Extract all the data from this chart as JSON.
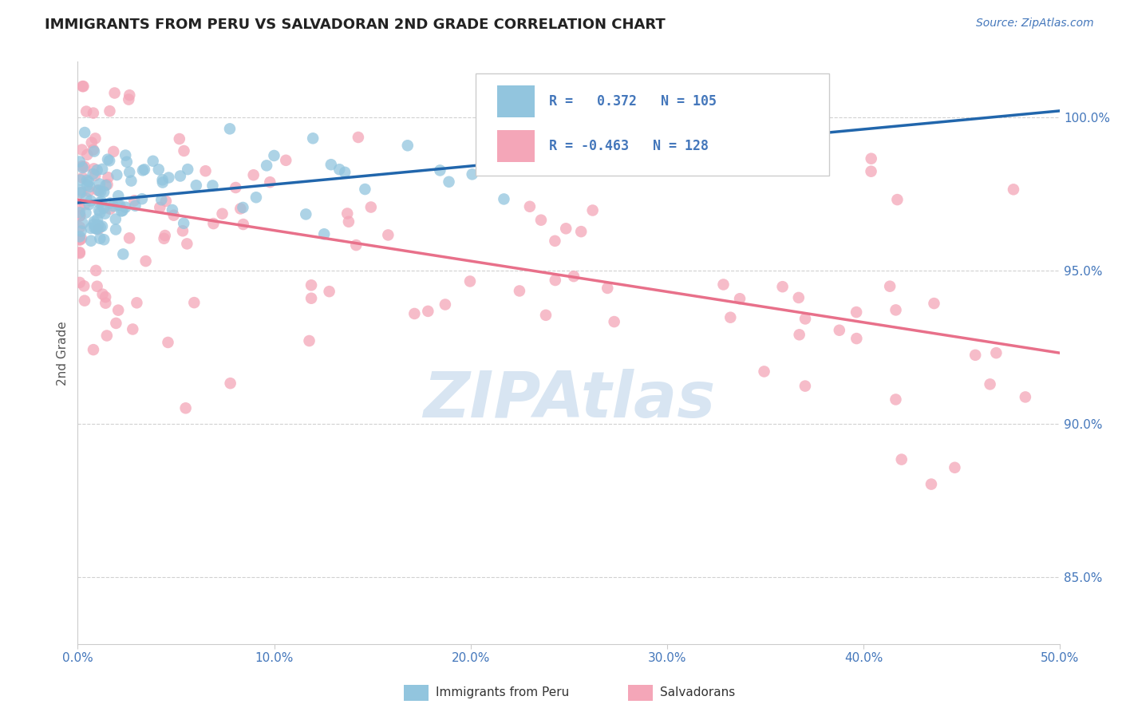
{
  "title": "IMMIGRANTS FROM PERU VS SALVADORAN 2ND GRADE CORRELATION CHART",
  "source_text": "Source: ZipAtlas.com",
  "ylabel": "2nd Grade",
  "xlim": [
    0.0,
    0.5
  ],
  "ylim": [
    0.828,
    1.018
  ],
  "xtick_vals": [
    0.0,
    0.1,
    0.2,
    0.3,
    0.4,
    0.5
  ],
  "xtick_labels": [
    "0.0%",
    "10.0%",
    "20.0%",
    "30.0%",
    "40.0%",
    "50.0%"
  ],
  "ytick_vals": [
    0.85,
    0.9,
    0.95,
    1.0
  ],
  "ytick_labels": [
    "85.0%",
    "90.0%",
    "95.0%",
    "100.0%"
  ],
  "blue_R": 0.372,
  "blue_N": 105,
  "pink_R": -0.463,
  "pink_N": 128,
  "blue_color": "#92c5de",
  "pink_color": "#f4a6b8",
  "blue_line_color": "#2166ac",
  "pink_line_color": "#e8708a",
  "legend_label_blue": "Immigrants from Peru",
  "legend_label_pink": "Salvadorans",
  "background_color": "#ffffff",
  "grid_color": "#cccccc",
  "axis_tick_color": "#4477bb",
  "title_color": "#222222",
  "ylabel_color": "#555555",
  "watermark_text": "ZIPAtlas",
  "watermark_color": "#b8d0e8",
  "blue_line_x0": 0.0,
  "blue_line_y0": 0.972,
  "blue_line_x1": 0.5,
  "blue_line_y1": 1.002,
  "pink_line_x0": 0.0,
  "pink_line_y0": 0.973,
  "pink_line_x1": 0.5,
  "pink_line_y1": 0.923
}
